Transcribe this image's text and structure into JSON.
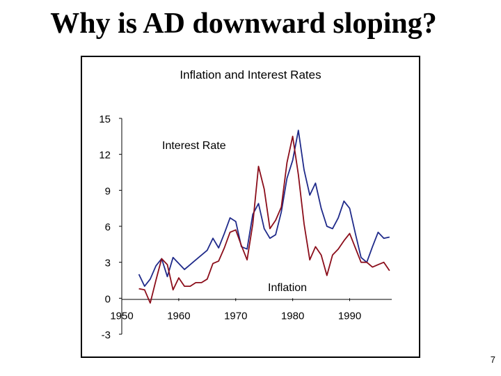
{
  "slide": {
    "title": "Why is AD downward sloping?",
    "page_number": "7"
  },
  "chart_data": {
    "type": "line",
    "title": "Inflation and Interest Rates",
    "xlabel": "",
    "ylabel": "",
    "xlim": [
      1950,
      1998
    ],
    "ylim": [
      -3,
      15
    ],
    "xticks": [
      1950,
      1960,
      1970,
      1980,
      1990
    ],
    "yticks": [
      15,
      12,
      9,
      6,
      3,
      0,
      -3
    ],
    "grid": false,
    "legend": "none (series labeled directly on chart)",
    "colors": {
      "interest": "#1f2a8a",
      "inflation": "#8b0d1a"
    },
    "series": [
      {
        "name": "Interest Rate",
        "color": "#1f2a8a",
        "points": [
          [
            1953,
            2.0
          ],
          [
            1954,
            1.0
          ],
          [
            1955,
            1.6
          ],
          [
            1956,
            2.7
          ],
          [
            1957,
            3.3
          ],
          [
            1958,
            1.8
          ],
          [
            1959,
            3.4
          ],
          [
            1960,
            2.9
          ],
          [
            1961,
            2.4
          ],
          [
            1962,
            2.8
          ],
          [
            1963,
            3.2
          ],
          [
            1964,
            3.6
          ],
          [
            1965,
            4.0
          ],
          [
            1966,
            5.0
          ],
          [
            1967,
            4.2
          ],
          [
            1968,
            5.4
          ],
          [
            1969,
            6.7
          ],
          [
            1970,
            6.4
          ],
          [
            1971,
            4.3
          ],
          [
            1972,
            4.1
          ],
          [
            1973,
            7.0
          ],
          [
            1974,
            7.9
          ],
          [
            1975,
            5.8
          ],
          [
            1976,
            5.0
          ],
          [
            1977,
            5.3
          ],
          [
            1978,
            7.2
          ],
          [
            1979,
            10.0
          ],
          [
            1980,
            11.5
          ],
          [
            1981,
            14.0
          ],
          [
            1982,
            10.7
          ],
          [
            1983,
            8.6
          ],
          [
            1984,
            9.6
          ],
          [
            1985,
            7.5
          ],
          [
            1986,
            6.0
          ],
          [
            1987,
            5.8
          ],
          [
            1988,
            6.7
          ],
          [
            1989,
            8.1
          ],
          [
            1990,
            7.5
          ],
          [
            1991,
            5.4
          ],
          [
            1992,
            3.4
          ],
          [
            1993,
            3.0
          ],
          [
            1994,
            4.3
          ],
          [
            1995,
            5.5
          ],
          [
            1996,
            5.0
          ],
          [
            1997,
            5.1
          ]
        ]
      },
      {
        "name": "Inflation",
        "color": "#8b0d1a",
        "points": [
          [
            1953,
            0.8
          ],
          [
            1954,
            0.7
          ],
          [
            1955,
            -0.4
          ],
          [
            1956,
            1.5
          ],
          [
            1957,
            3.3
          ],
          [
            1958,
            2.8
          ],
          [
            1959,
            0.7
          ],
          [
            1960,
            1.7
          ],
          [
            1961,
            1.0
          ],
          [
            1962,
            1.0
          ],
          [
            1963,
            1.3
          ],
          [
            1964,
            1.3
          ],
          [
            1965,
            1.6
          ],
          [
            1966,
            2.9
          ],
          [
            1967,
            3.1
          ],
          [
            1968,
            4.2
          ],
          [
            1969,
            5.5
          ],
          [
            1970,
            5.7
          ],
          [
            1971,
            4.4
          ],
          [
            1972,
            3.2
          ],
          [
            1973,
            6.2
          ],
          [
            1974,
            11.0
          ],
          [
            1975,
            9.1
          ],
          [
            1976,
            5.8
          ],
          [
            1977,
            6.5
          ],
          [
            1978,
            7.6
          ],
          [
            1979,
            11.3
          ],
          [
            1980,
            13.5
          ],
          [
            1981,
            10.3
          ],
          [
            1982,
            6.2
          ],
          [
            1983,
            3.2
          ],
          [
            1984,
            4.3
          ],
          [
            1985,
            3.6
          ],
          [
            1986,
            1.9
          ],
          [
            1987,
            3.6
          ],
          [
            1988,
            4.1
          ],
          [
            1989,
            4.8
          ],
          [
            1990,
            5.4
          ],
          [
            1991,
            4.2
          ],
          [
            1992,
            3.0
          ],
          [
            1993,
            3.0
          ],
          [
            1994,
            2.6
          ],
          [
            1995,
            2.8
          ],
          [
            1996,
            3.0
          ],
          [
            1997,
            2.3
          ]
        ]
      }
    ]
  }
}
